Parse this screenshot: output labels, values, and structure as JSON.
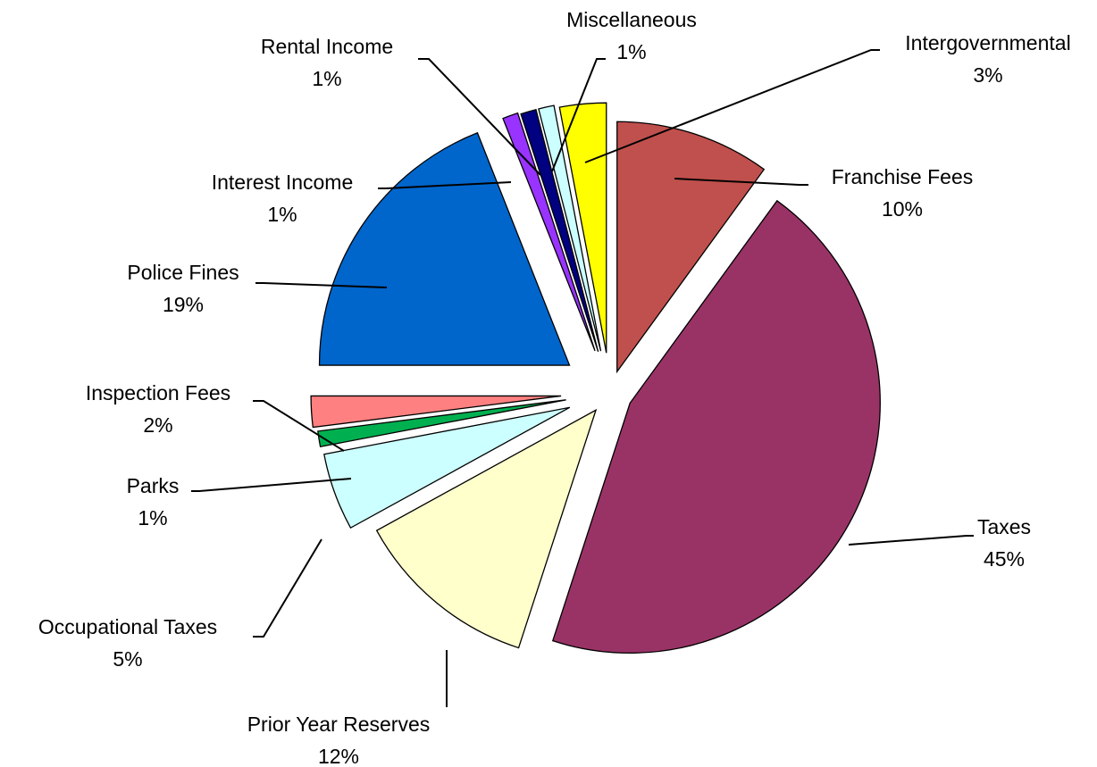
{
  "chart_data": {
    "type": "pie",
    "title": "",
    "slices": [
      {
        "label": "Franchise Fees",
        "value": 10,
        "display": "10%",
        "color": "#C0504D",
        "exploded": true
      },
      {
        "label": "Taxes",
        "value": 45,
        "display": "45%",
        "color": "#993366",
        "exploded": true
      },
      {
        "label": "Prior Year Reserves",
        "value": 12,
        "display": "12%",
        "color": "#FFFFCC",
        "exploded": true
      },
      {
        "label": "Occupational Taxes",
        "value": 5,
        "display": "5%",
        "color": "#CCFFFF",
        "exploded": true
      },
      {
        "label": "Parks",
        "value": 1,
        "display": "1%",
        "color": "#00B050",
        "exploded": true
      },
      {
        "label": "Inspection Fees",
        "value": 2,
        "display": "2%",
        "color": "#FF8080",
        "exploded": true
      },
      {
        "label": "Police Fines",
        "value": 19,
        "display": "19%",
        "color": "#0066CC",
        "exploded": true
      },
      {
        "label": "Interest Income",
        "value": 1,
        "display": "1%",
        "color": "#9933FF",
        "exploded": true
      },
      {
        "label": "Rental Income",
        "value": 1,
        "display": "1%",
        "color": "#000080",
        "exploded": true
      },
      {
        "label": "Miscellaneous",
        "value": 1,
        "display": "1%",
        "color": "#CCFFFF",
        "exploded": true
      },
      {
        "label": "Intergovernmental",
        "value": 3,
        "display": "3%",
        "color": "#FFFF00",
        "exploded": true
      }
    ],
    "legend": "none",
    "labels": "outside-with-leader-lines"
  }
}
